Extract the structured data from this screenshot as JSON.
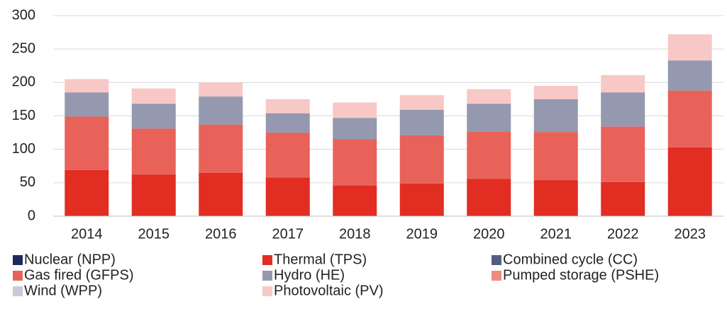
{
  "chart_data": {
    "type": "stacked_bar",
    "categories": [
      "2014",
      "2015",
      "2016",
      "2017",
      "2018",
      "2019",
      "2020",
      "2021",
      "2022",
      "2023"
    ],
    "series": [
      {
        "name": "Nuclear (NPP)",
        "color": "#1f2a5c",
        "values": [
          0,
          0,
          0,
          0,
          0,
          0,
          0,
          0,
          0,
          0
        ]
      },
      {
        "name": "Thermal (TPS)",
        "color": "#e12d22",
        "values": [
          69,
          62,
          65,
          58,
          46,
          49,
          56,
          54,
          51,
          103
        ]
      },
      {
        "name": "Combined cycle (CC)",
        "color": "#555d7e",
        "values": [
          0,
          0,
          0,
          0,
          0,
          0,
          0,
          0,
          0,
          0
        ]
      },
      {
        "name": "Gas fired (GFPS)",
        "color": "#e8625a",
        "values": [
          80,
          69,
          72,
          67,
          69,
          72,
          71,
          72,
          83,
          85
        ]
      },
      {
        "name": "Hydro (HE)",
        "color": "#9499b0",
        "values": [
          36,
          37,
          42,
          29,
          32,
          38,
          41,
          49,
          51,
          45
        ]
      },
      {
        "name": "Pumped storage (PSHE)",
        "color": "#ee8a84",
        "values": [
          0,
          0,
          0,
          0,
          0,
          0,
          0,
          0,
          0,
          0
        ]
      },
      {
        "name": "Wind (WPP)",
        "color": "#c9cad8",
        "values": [
          0,
          0,
          0,
          0,
          0,
          0,
          0,
          0,
          0,
          0
        ]
      },
      {
        "name": "Photovoltaic (PV)",
        "color": "#f8c8c6",
        "values": [
          20,
          23,
          21,
          21,
          23,
          22,
          22,
          20,
          26,
          39
        ]
      }
    ],
    "ylim": [
      0,
      300
    ],
    "yticks": [
      0,
      50,
      100,
      150,
      200,
      250,
      300
    ],
    "grid": true,
    "legend": "bottom"
  }
}
